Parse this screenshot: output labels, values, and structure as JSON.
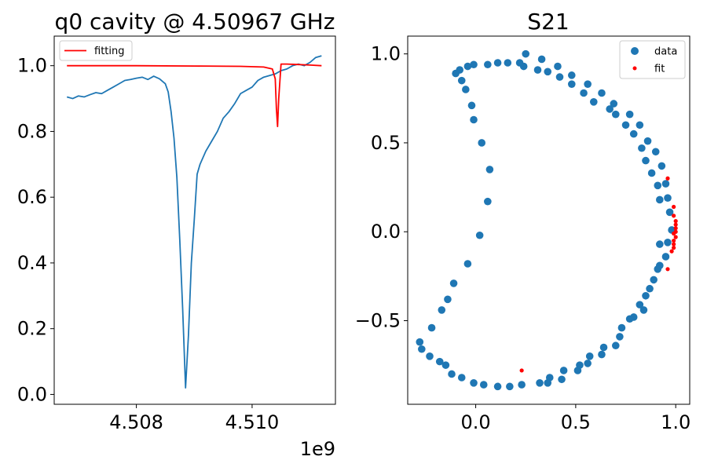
{
  "chart_data": [
    {
      "type": "line",
      "title": "q0 cavity @ 4.50967 GHz",
      "xlabel": "",
      "ylabel": "",
      "x_offset_label": "1e9",
      "xlim": [
        4.50658,
        4.51144
      ],
      "ylim": [
        -0.03,
        1.09
      ],
      "x_ticks": [
        4.508,
        4.51
      ],
      "x_tick_labels": [
        "4.508",
        "4.510"
      ],
      "y_ticks": [
        0.0,
        0.2,
        0.4,
        0.6,
        0.8,
        1.0
      ],
      "y_tick_labels": [
        "0.0",
        "0.2",
        "0.4",
        "0.6",
        "0.8",
        "1.0"
      ],
      "grid": false,
      "legend_position": "top-left",
      "legend": [
        "fitting"
      ],
      "series": [
        {
          "name": "",
          "color": "#1f77b4",
          "x": [
            4.5068,
            4.5069,
            4.507,
            4.5071,
            4.5072,
            4.5073,
            4.5074,
            4.5075,
            4.5076,
            4.5077,
            4.5078,
            4.5079,
            4.508,
            4.5081,
            4.5082,
            4.5083,
            4.5084,
            4.5085,
            4.50855,
            4.5086,
            4.50865,
            4.5087,
            4.50875,
            4.5088,
            4.50885,
            4.5089,
            4.50895,
            4.509,
            4.50905,
            4.5091,
            4.50915,
            4.5092,
            4.5093,
            4.5094,
            4.5095,
            4.5096,
            4.5097,
            4.5098,
            4.5099,
            4.51,
            4.5101,
            4.5102,
            4.5103,
            4.5104,
            4.5105,
            4.5106,
            4.5107,
            4.5108,
            4.5109,
            4.511,
            4.5111,
            4.5112
          ],
          "y": [
            0.905,
            0.9,
            0.908,
            0.905,
            0.912,
            0.918,
            0.915,
            0.925,
            0.935,
            0.945,
            0.955,
            0.958,
            0.962,
            0.965,
            0.958,
            0.968,
            0.96,
            0.945,
            0.92,
            0.86,
            0.78,
            0.66,
            0.47,
            0.26,
            0.02,
            0.18,
            0.4,
            0.53,
            0.67,
            0.7,
            0.72,
            0.74,
            0.77,
            0.8,
            0.84,
            0.86,
            0.885,
            0.915,
            0.925,
            0.935,
            0.955,
            0.965,
            0.97,
            0.975,
            0.985,
            0.99,
            1.0,
            1.005,
            1.0,
            1.01,
            1.025,
            1.03
          ]
        },
        {
          "name": "fitting",
          "color": "#ff0000",
          "x": [
            4.5068,
            4.508,
            4.509,
            4.5098,
            4.5102,
            4.51035,
            4.5104,
            4.51042,
            4.51044,
            4.51046,
            4.5105,
            4.5106,
            4.511,
            4.5112
          ],
          "y": [
            1.0,
            1.0,
            0.999,
            0.998,
            0.996,
            0.99,
            0.96,
            0.87,
            0.815,
            0.9,
            1.005,
            1.005,
            1.002,
            1.0
          ]
        }
      ]
    },
    {
      "type": "scatter",
      "title": "S21",
      "xlabel": "",
      "ylabel": "",
      "xlim": [
        -0.34,
        1.07
      ],
      "ylim": [
        -0.97,
        1.1
      ],
      "x_ticks": [
        0.0,
        0.5,
        1.0
      ],
      "x_tick_labels": [
        "0.0",
        "0.5",
        "1.0"
      ],
      "y_ticks": [
        -0.5,
        0.0,
        0.5,
        1.0
      ],
      "y_tick_labels": [
        "−0.5",
        "0.0",
        "0.5",
        "1.0"
      ],
      "grid": false,
      "legend_position": "top-right",
      "legend": [
        "data",
        "fit"
      ],
      "series": [
        {
          "name": "data",
          "color": "#1f77b4",
          "points": [
            [
              0.02,
              -0.02
            ],
            [
              0.06,
              0.17
            ],
            [
              0.07,
              0.35
            ],
            [
              0.03,
              0.5
            ],
            [
              -0.01,
              0.63
            ],
            [
              -0.02,
              0.71
            ],
            [
              -0.05,
              0.8
            ],
            [
              -0.07,
              0.85
            ],
            [
              -0.1,
              0.89
            ],
            [
              -0.08,
              0.91
            ],
            [
              -0.04,
              0.93
            ],
            [
              -0.01,
              0.94
            ],
            [
              0.06,
              0.94
            ],
            [
              0.11,
              0.95
            ],
            [
              0.16,
              0.95
            ],
            [
              0.22,
              0.95
            ],
            [
              0.25,
              1.0
            ],
            [
              0.24,
              0.93
            ],
            [
              0.31,
              0.91
            ],
            [
              0.33,
              0.97
            ],
            [
              0.36,
              0.9
            ],
            [
              0.41,
              0.93
            ],
            [
              0.42,
              0.87
            ],
            [
              0.48,
              0.88
            ],
            [
              0.48,
              0.83
            ],
            [
              0.54,
              0.78
            ],
            [
              0.56,
              0.83
            ],
            [
              0.59,
              0.73
            ],
            [
              0.63,
              0.78
            ],
            [
              0.67,
              0.69
            ],
            [
              0.69,
              0.72
            ],
            [
              0.7,
              0.66
            ],
            [
              0.75,
              0.6
            ],
            [
              0.77,
              0.66
            ],
            [
              0.79,
              0.55
            ],
            [
              0.82,
              0.6
            ],
            [
              0.83,
              0.47
            ],
            [
              0.85,
              0.4
            ],
            [
              0.86,
              0.51
            ],
            [
              0.88,
              0.33
            ],
            [
              0.9,
              0.45
            ],
            [
              0.91,
              0.26
            ],
            [
              0.92,
              0.18
            ],
            [
              0.93,
              0.37
            ],
            [
              0.95,
              0.27
            ],
            [
              0.96,
              0.19
            ],
            [
              0.97,
              0.11
            ],
            [
              0.98,
              0.01
            ],
            [
              0.96,
              -0.06
            ],
            [
              0.92,
              -0.07
            ],
            [
              0.95,
              -0.14
            ],
            [
              0.92,
              -0.19
            ],
            [
              0.91,
              -0.21
            ],
            [
              0.89,
              -0.27
            ],
            [
              0.87,
              -0.32
            ],
            [
              0.85,
              -0.36
            ],
            [
              0.82,
              -0.41
            ],
            [
              0.84,
              -0.44
            ],
            [
              0.79,
              -0.48
            ],
            [
              0.77,
              -0.49
            ],
            [
              0.73,
              -0.54
            ],
            [
              0.72,
              -0.59
            ],
            [
              0.7,
              -0.64
            ],
            [
              0.64,
              -0.65
            ],
            [
              0.63,
              -0.69
            ],
            [
              0.57,
              -0.7
            ],
            [
              0.56,
              -0.74
            ],
            [
              0.52,
              -0.75
            ],
            [
              0.51,
              -0.78
            ],
            [
              0.44,
              -0.78
            ],
            [
              0.43,
              -0.83
            ],
            [
              0.37,
              -0.82
            ],
            [
              0.36,
              -0.85
            ],
            [
              0.32,
              -0.85
            ],
            [
              0.23,
              -0.86
            ],
            [
              0.17,
              -0.87
            ],
            [
              0.11,
              -0.87
            ],
            [
              0.04,
              -0.86
            ],
            [
              -0.01,
              -0.85
            ],
            [
              -0.07,
              -0.82
            ],
            [
              -0.12,
              -0.8
            ],
            [
              -0.15,
              -0.75
            ],
            [
              -0.18,
              -0.73
            ],
            [
              -0.23,
              -0.7
            ],
            [
              -0.27,
              -0.66
            ],
            [
              -0.28,
              -0.62
            ],
            [
              -0.22,
              -0.54
            ],
            [
              -0.17,
              -0.44
            ],
            [
              -0.14,
              -0.38
            ],
            [
              -0.11,
              -0.29
            ],
            [
              -0.04,
              -0.18
            ]
          ]
        },
        {
          "name": "fit",
          "color": "#ff0000",
          "points": [
            [
              0.23,
              -0.78
            ],
            [
              0.96,
              0.3
            ],
            [
              0.99,
              0.14
            ],
            [
              0.99,
              0.09
            ],
            [
              1.0,
              0.06
            ],
            [
              1.0,
              0.04
            ],
            [
              1.0,
              0.02
            ],
            [
              1.0,
              0.0
            ],
            [
              0.99,
              -0.01
            ],
            [
              1.0,
              -0.03
            ],
            [
              0.99,
              -0.05
            ],
            [
              0.99,
              -0.07
            ],
            [
              0.99,
              -0.09
            ],
            [
              0.98,
              -0.11
            ],
            [
              0.96,
              -0.21
            ]
          ]
        }
      ]
    }
  ]
}
